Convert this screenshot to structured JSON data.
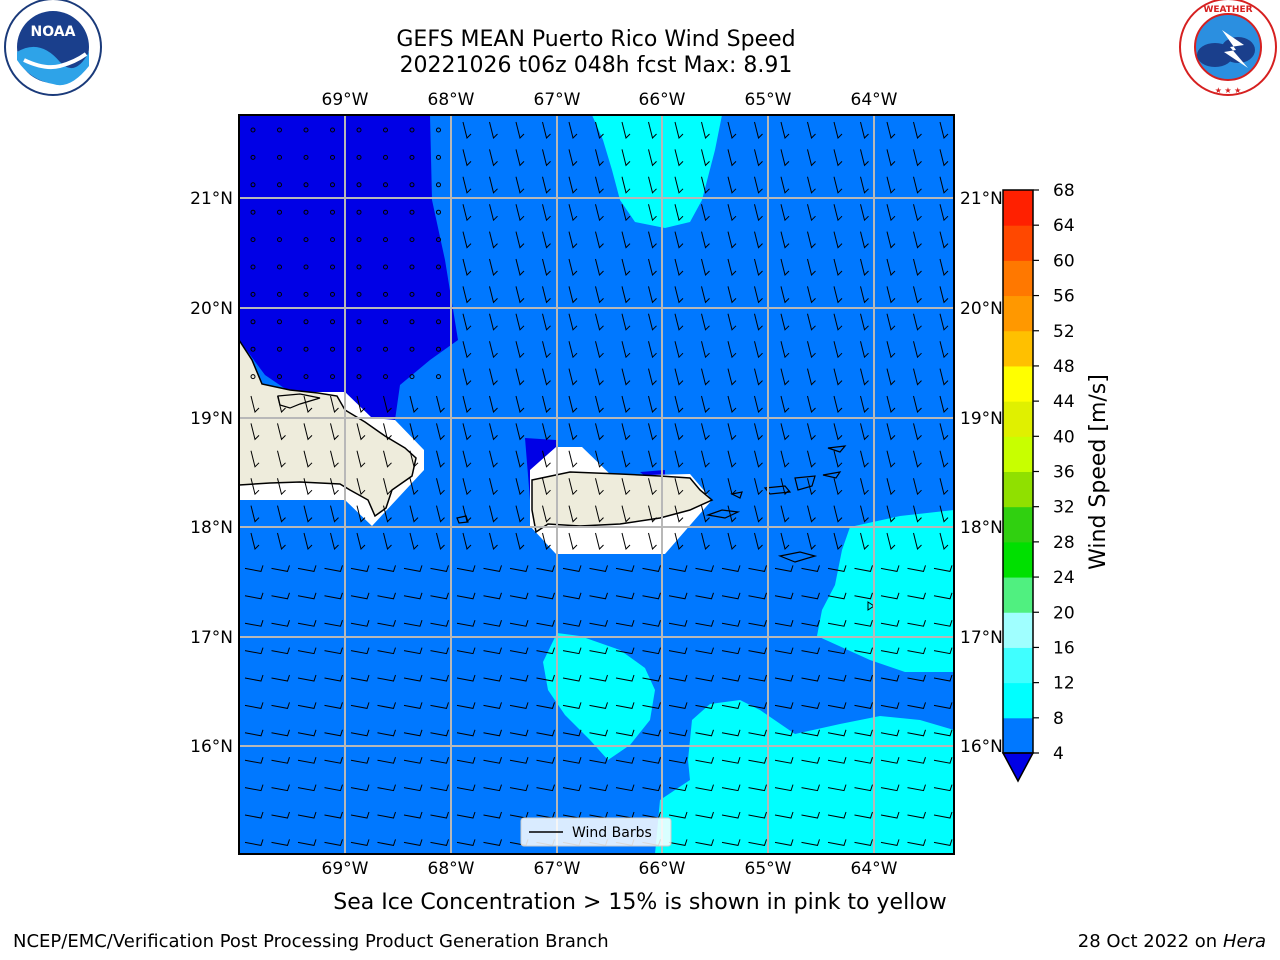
{
  "header": {
    "title_line1": "GEFS MEAN Puerto Rico Wind Speed",
    "title_line2": "20221026 t06z 048h fcst   Max: 8.91"
  },
  "logos": {
    "left": {
      "name": "noaa-logo",
      "text": "NOAA",
      "ring_text": "NATIONAL OCEANIC AND ATMOSPHERIC ADMINISTRATION · U.S. DEPARTMENT OF COMMERCE"
    },
    "right": {
      "name": "nws-logo",
      "ring_text": "NATIONAL WEATHER SERVICE"
    }
  },
  "map": {
    "lon_labels": [
      "69°W",
      "68°W",
      "67°W",
      "66°W",
      "65°W",
      "64°W"
    ],
    "lat_labels": [
      "21°N",
      "20°N",
      "19°N",
      "18°N",
      "17°N",
      "16°N"
    ],
    "legend_label": "Wind Barbs",
    "colors": {
      "ocean_base": "#0078ff",
      "calm": "#0000e6",
      "fast": "#00ffff",
      "land": "#eeecdc"
    }
  },
  "colorbar": {
    "label": "Wind Speed [m/s]",
    "ticks": [
      "4",
      "8",
      "12",
      "16",
      "20",
      "24",
      "28",
      "32",
      "36",
      "40",
      "44",
      "48",
      "52",
      "56",
      "60",
      "64",
      "68"
    ],
    "colors": [
      "#0078ff",
      "#00ffff",
      "#40ffff",
      "#a0ffff",
      "#50f080",
      "#00e000",
      "#30d010",
      "#90e000",
      "#c8ff00",
      "#e0f000",
      "#ffff00",
      "#ffc000",
      "#ff9800",
      "#ff7800",
      "#ff4800",
      "#ff2000",
      "#ff0000"
    ],
    "under_color": "#0000e6"
  },
  "note": "Sea Ice Concentration > 15% is shown in pink to yellow",
  "footer": {
    "left": "NCEP/EMC/Verification Post Processing Product Generation Branch",
    "right_date": "28 Oct 2022 on",
    "right_host": "Hera"
  }
}
